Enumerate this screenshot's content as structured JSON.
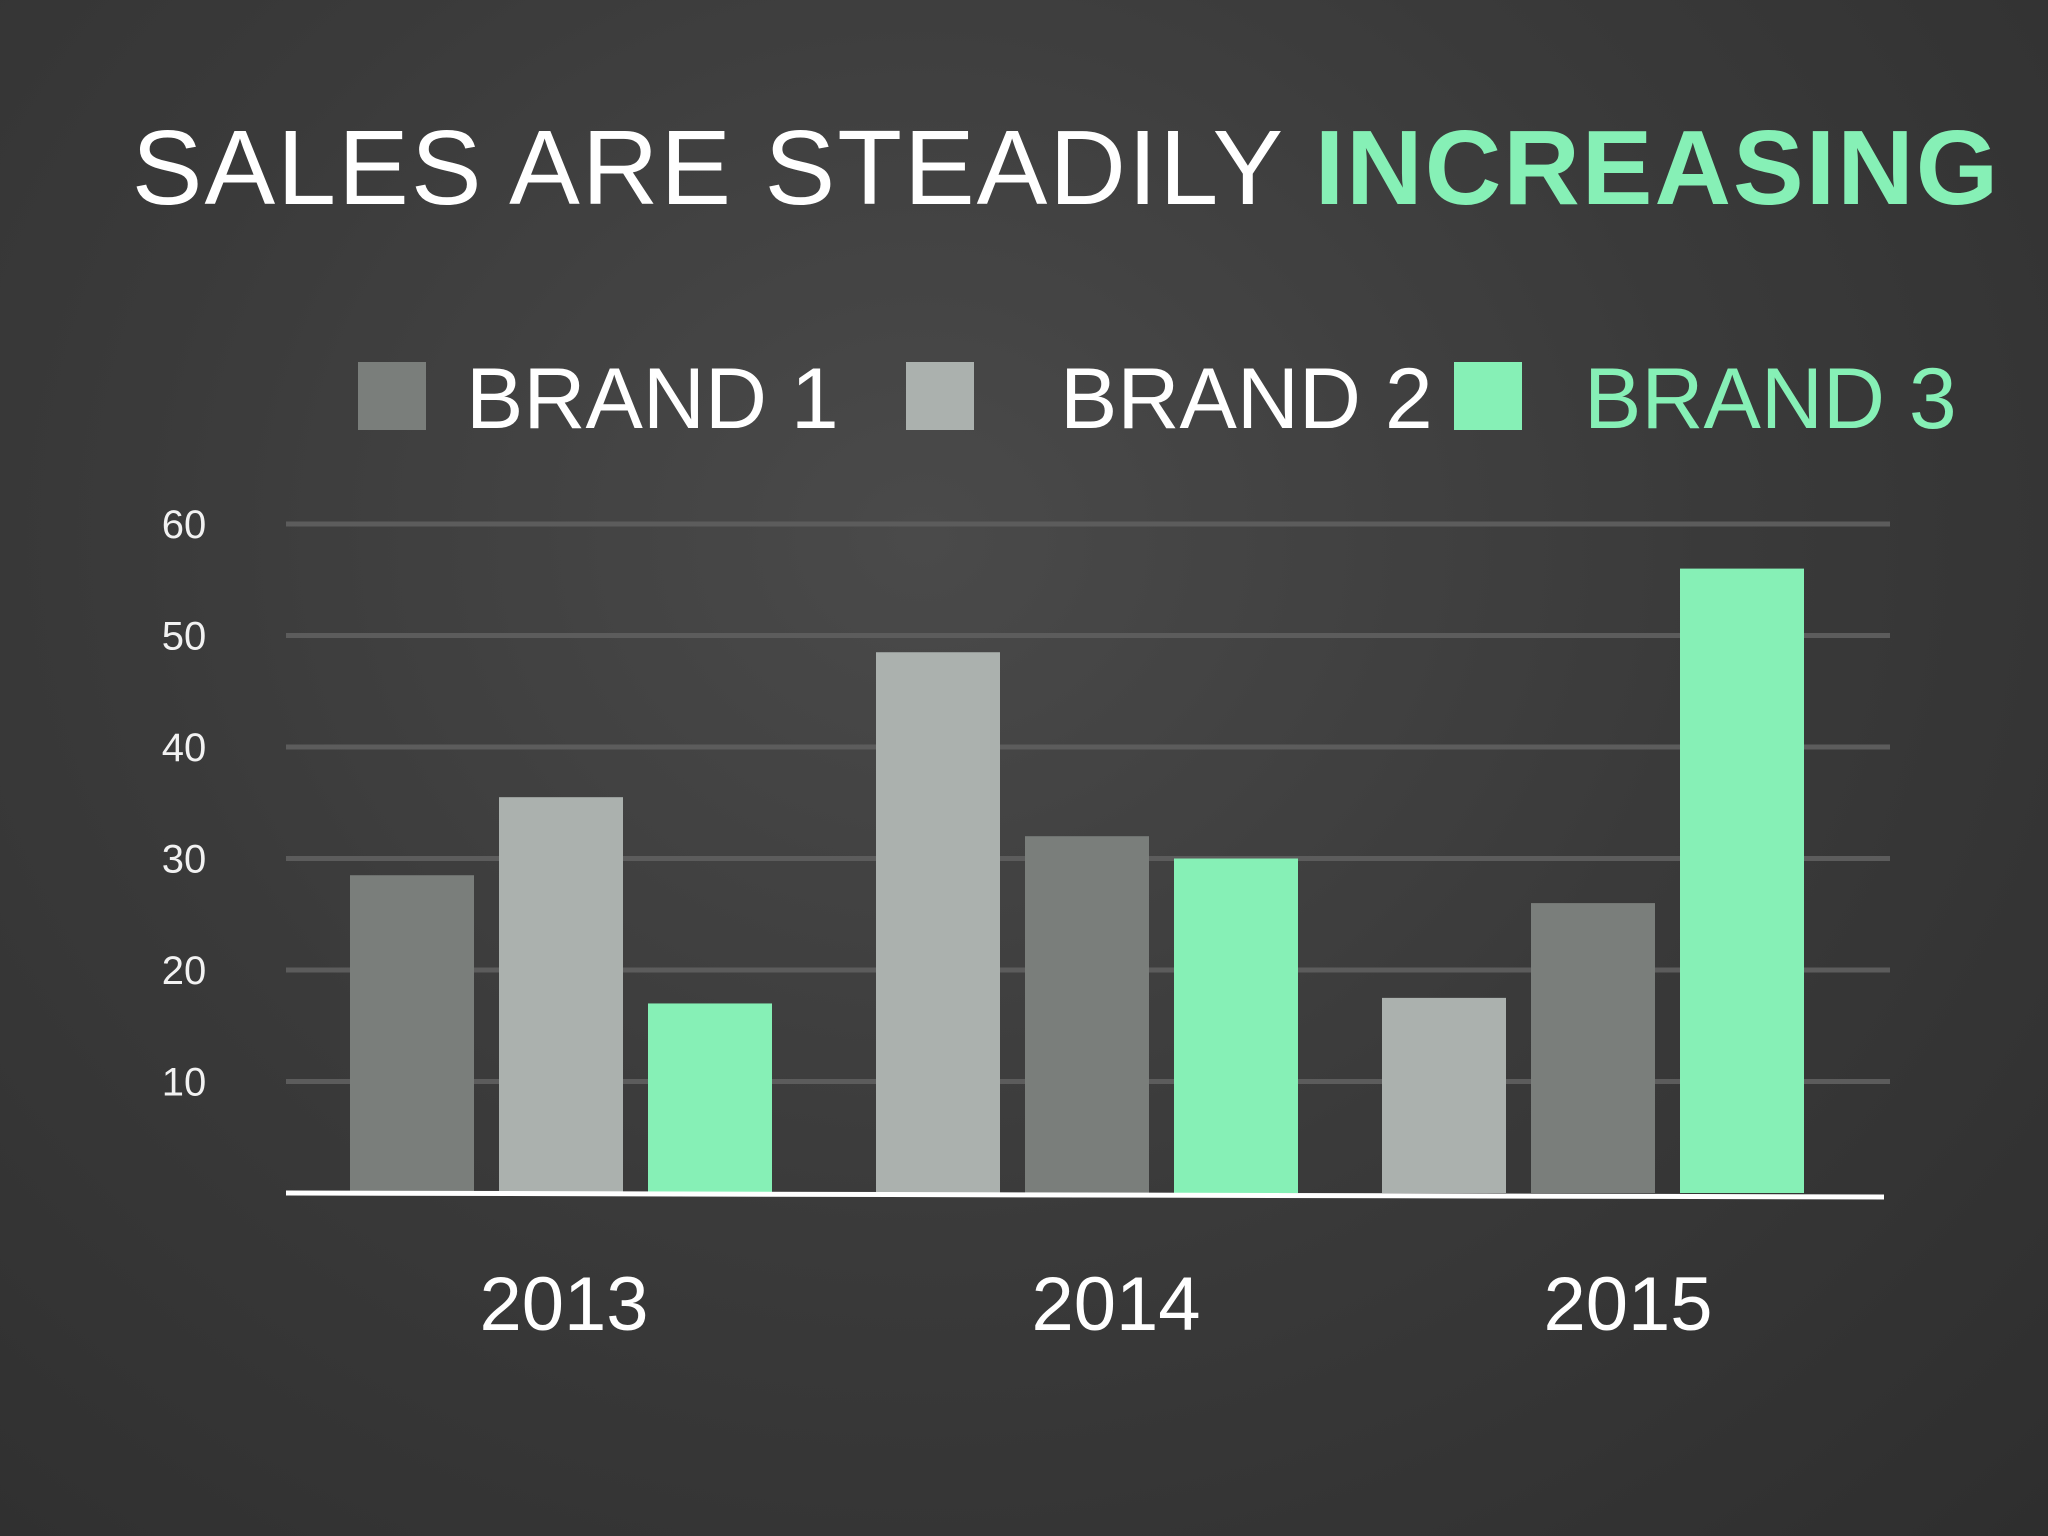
{
  "chart_data": {
    "type": "bar",
    "title_part1": "SALES ARE STEADILY ",
    "title_part2": "INCREASING",
    "categories": [
      "2013",
      "2014",
      "2015"
    ],
    "legend": [
      "BRAND 1",
      "BRAND 2",
      "BRAND 3"
    ],
    "legend_placement": "top",
    "bars": [
      [
        {
          "value": 28.5,
          "color": "#7a7e7b"
        },
        {
          "value": 35.5,
          "color": "#abb1ae"
        },
        {
          "value": 17,
          "color": "#86f0b6"
        }
      ],
      [
        {
          "value": 48.5,
          "color": "#abb1ae"
        },
        {
          "value": 32,
          "color": "#7a7e7b"
        },
        {
          "value": 30,
          "color": "#86f0b6"
        }
      ],
      [
        {
          "value": 17.5,
          "color": "#abb1ae"
        },
        {
          "value": 26,
          "color": "#7a7e7b"
        },
        {
          "value": 56,
          "color": "#86f0b6"
        }
      ]
    ],
    "yticks": [
      10,
      20,
      30,
      40,
      50,
      60
    ],
    "ylim": [
      0,
      60
    ],
    "grid": true,
    "colors": {
      "brand1": "#7a7e7b",
      "brand2": "#abb1ae",
      "brand3": "#86f0b6",
      "title": "#ffffff",
      "accent": "#86f0b6",
      "gridline": "#5c5c5c",
      "axis": "#ffffff"
    }
  }
}
